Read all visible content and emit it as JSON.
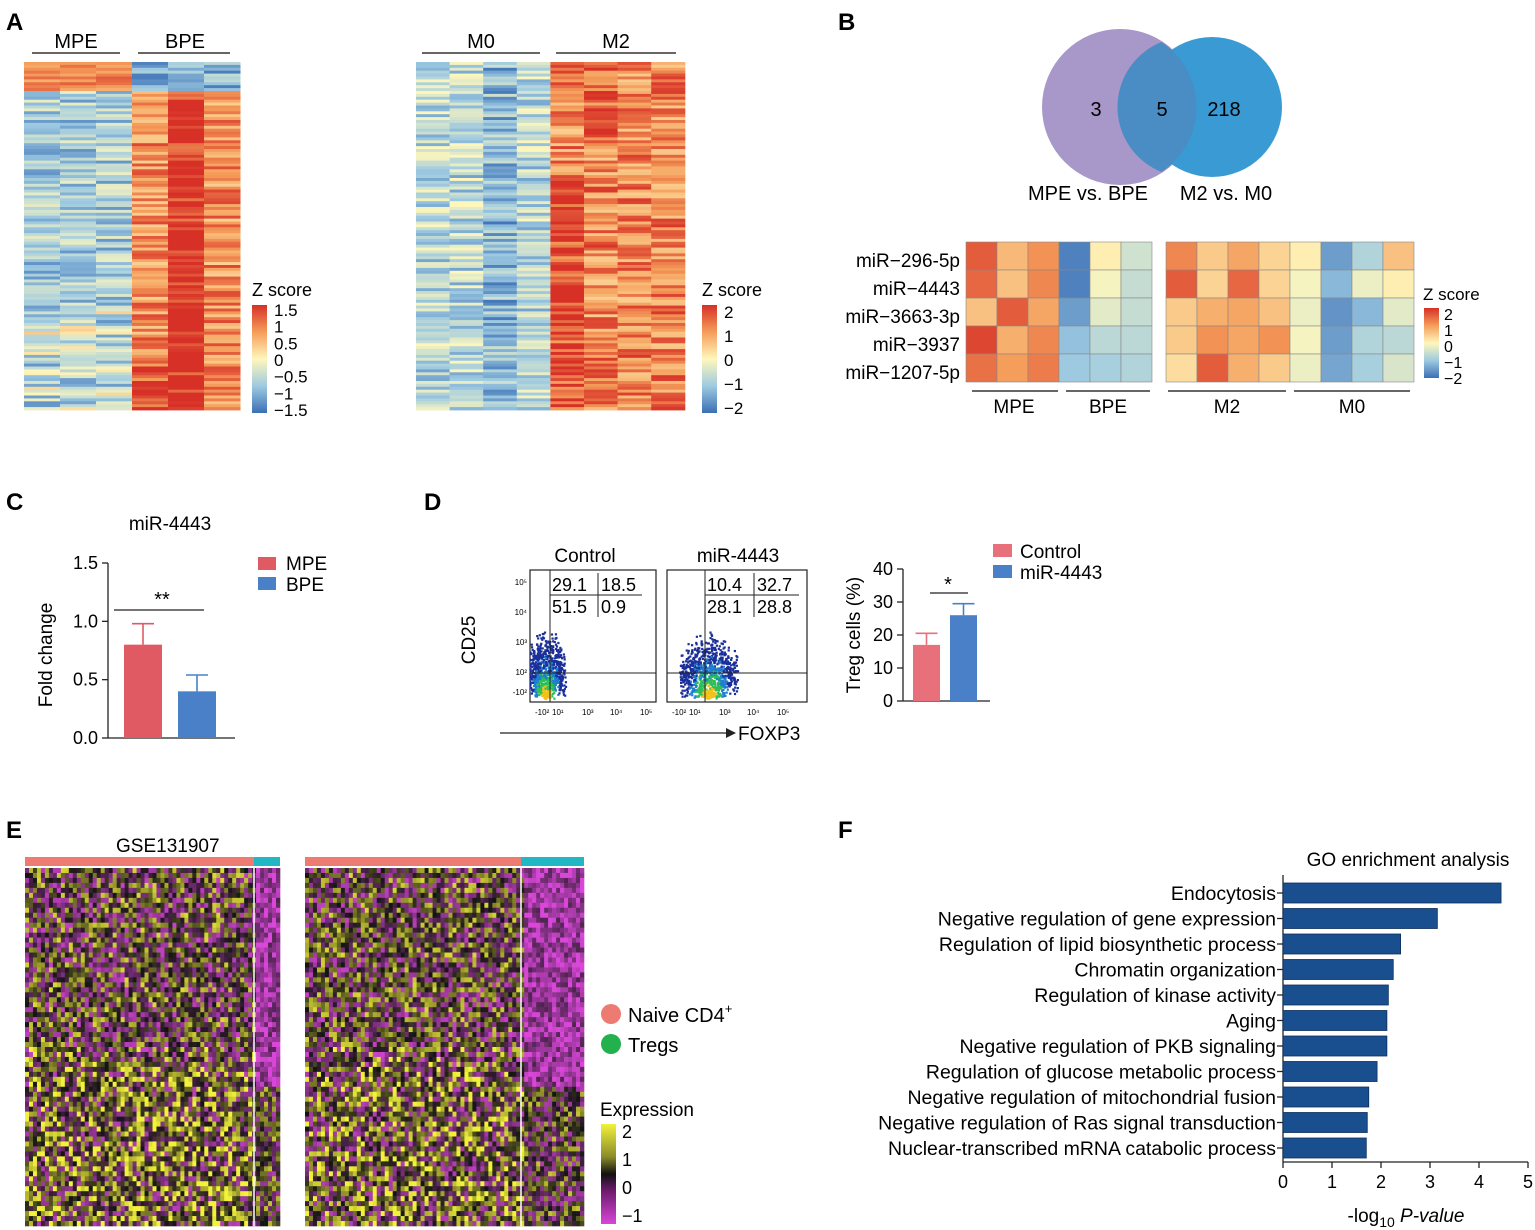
{
  "panels": {
    "A": {
      "letter": "A",
      "left": {
        "group_labels": [
          "MPE",
          "BPE"
        ],
        "legend_title": "Z score",
        "legend_ticks": [
          "1.5",
          "1",
          "0.5",
          "0",
          "−0.5",
          "−1",
          "−1.5"
        ]
      },
      "right": {
        "group_labels": [
          "M0",
          "M2"
        ],
        "legend_title": "Z score",
        "legend_ticks": [
          "2",
          "1",
          "0",
          "−1",
          "−2"
        ]
      }
    },
    "B": {
      "letter": "B",
      "venn": {
        "left_only": "3",
        "overlap": "5",
        "right_only": "218",
        "left_label": "MPE vs. BPE",
        "right_label": "M2 vs. M0",
        "left_color": "#a897c9",
        "right_color": "#3a9ad4"
      },
      "rows": [
        "miR−296-5p",
        "miR−4443",
        "miR−3663-3p",
        "miR−3937",
        "miR−1207-5p"
      ],
      "left_groups": [
        "MPE",
        "BPE"
      ],
      "right_groups": [
        "M2",
        "M0"
      ],
      "left_matrix": [
        [
          1.6,
          0.7,
          1.1,
          -1.8,
          0.1,
          -0.5
        ],
        [
          1.5,
          0.6,
          1.2,
          -1.8,
          -0.1,
          -0.6
        ],
        [
          0.6,
          1.6,
          0.9,
          -1.5,
          -0.3,
          -0.6
        ],
        [
          1.8,
          0.8,
          1.2,
          -1.1,
          -0.7,
          -0.7
        ],
        [
          1.4,
          1.0,
          1.3,
          -1.0,
          -0.9,
          -0.8
        ]
      ],
      "right_matrix": [
        [
          1.2,
          0.5,
          0.9,
          0.4,
          0.1,
          -1.5,
          -0.8,
          0.6
        ],
        [
          1.6,
          0.4,
          1.5,
          0.4,
          -0.1,
          -1.2,
          -0.2,
          0.1
        ],
        [
          0.5,
          0.8,
          0.9,
          0.6,
          -0.2,
          -1.6,
          -1.2,
          -0.3
        ],
        [
          0.5,
          1.1,
          0.9,
          1.1,
          -0.1,
          -1.5,
          -0.8,
          -0.7
        ],
        [
          0.3,
          1.6,
          0.8,
          0.5,
          -0.2,
          -1.4,
          -0.9,
          -0.4
        ]
      ],
      "legend_title": "Z score",
      "legend_ticks": [
        "2",
        "1",
        "0",
        "−1",
        "−2"
      ]
    },
    "C": {
      "letter": "C",
      "title": "miR-4443",
      "significance": "**"
    },
    "D": {
      "letter": "D",
      "flow": [
        {
          "title": "Control",
          "q": [
            "29.1",
            "18.5",
            "51.5",
            "0.9"
          ]
        },
        {
          "title": "miR-4443",
          "q": [
            "10.4",
            "32.7",
            "28.1",
            "28.8"
          ]
        }
      ],
      "flow_ylabel": "CD25",
      "flow_xlabel": "FOXP3",
      "flow_xticks": [
        "-10²",
        "10¹",
        "10³",
        "10⁴",
        "10⁵"
      ],
      "flow_yticks": [
        "10⁵",
        "10⁴",
        "10³",
        "10²",
        "-10²"
      ],
      "significance": "*"
    },
    "E": {
      "letter": "E",
      "dataset": "GSE131907",
      "legend": [
        "Naive CD4",
        "Tregs"
      ],
      "legend_superscript": "+",
      "legend_colors": [
        "#ee7b72",
        "#22b14c"
      ],
      "expr_title": "Expression",
      "expr_ticks": [
        "2",
        "1",
        "0",
        "−1"
      ]
    },
    "F": {
      "letter": "F"
    }
  },
  "chart_data": [
    {
      "type": "bar",
      "title": "miR-4443",
      "categories": [
        "MPE",
        "BPE"
      ],
      "values": [
        0.8,
        0.4
      ],
      "errors": [
        0.18,
        0.14
      ],
      "colors": [
        "#e05a63",
        "#4a80c8"
      ],
      "xlabel": "",
      "ylabel": "Fold change",
      "ylim": [
        0,
        1.5
      ],
      "yticks": [
        "0.0",
        "0.5",
        "1.0",
        "1.5"
      ],
      "legend": [
        "MPE",
        "BPE"
      ]
    },
    {
      "type": "bar",
      "title": "",
      "categories": [
        "Control",
        "miR-4443"
      ],
      "values": [
        17,
        26
      ],
      "errors": [
        3.5,
        3.5
      ],
      "colors": [
        "#e8707a",
        "#4a80c8"
      ],
      "xlabel": "",
      "ylabel": "Treg cells (%)",
      "ylim": [
        0,
        40
      ],
      "yticks": [
        "0",
        "10",
        "20",
        "30",
        "40"
      ],
      "legend": [
        "Control",
        "miR-4443"
      ]
    },
    {
      "type": "bar",
      "orientation": "horizontal",
      "title": "GO enrichment analysis",
      "categories": [
        "Endocytosis",
        "Negative regulation of gene expression",
        "Regulation of lipid biosynthetic process",
        "Chromatin organization",
        "Regulation of kinase activity",
        "Aging",
        "Negative regulation of PKB signaling",
        "Regulation of glucose metabolic process",
        "Negative regulation of mitochondrial fusion",
        "Negative regulation of Ras signal transduction",
        "Nuclear-transcribed mRNA catabolic process"
      ],
      "values": [
        4.45,
        3.15,
        2.4,
        2.25,
        2.15,
        2.12,
        2.12,
        1.92,
        1.75,
        1.72,
        1.7
      ],
      "color": "#1a4f8f",
      "xlabel_pre": "-log",
      "xlabel_sub": "10",
      "xlabel_post": " P-value",
      "xlim": [
        0,
        5
      ],
      "xticks": [
        "0",
        "1",
        "2",
        "3",
        "4",
        "5"
      ]
    }
  ]
}
